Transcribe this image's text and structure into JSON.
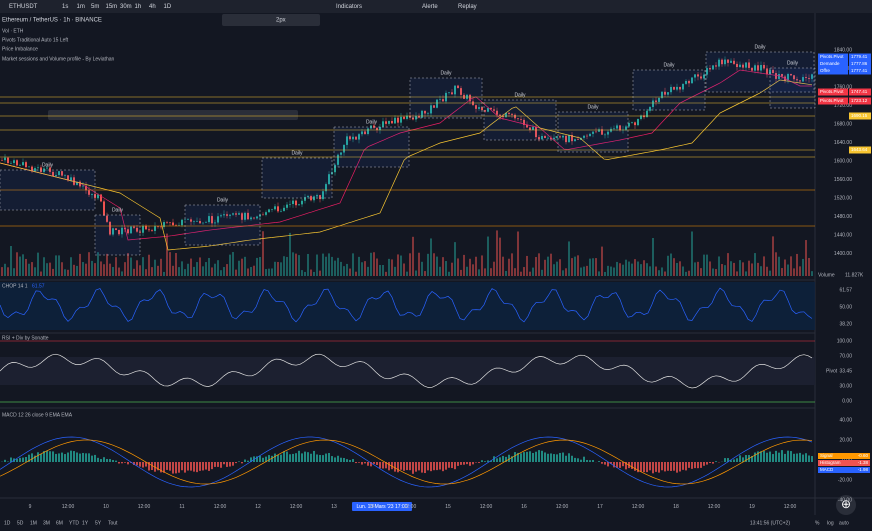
{
  "toolbar": {
    "symbol": "ETHUSDT",
    "timeframes": [
      "1s",
      "1m",
      "5m",
      "15m",
      "30m",
      "1h",
      "4h",
      "1D"
    ],
    "indicators": "Indicators",
    "alerts": "Alerte",
    "replay": "Replay",
    "size": "2px"
  },
  "header": {
    "title": "Ethereum / TetherUS · 1h · BINANCE",
    "volume": "Vol · ETH",
    "pivots": "Pivots Traditional Auto 15 Left",
    "imbalance": "Price Imbalance",
    "sessions": "Market sessions and Volume profile - By Leviathan"
  },
  "sessions": [
    "Daily",
    "Daily",
    "Daily",
    "Daily",
    "Daily",
    "Daily",
    "Daily",
    "Daily",
    "Daily",
    "Daily",
    "Daily"
  ],
  "price_axis": [
    "1840.00",
    "1800.00",
    "1760.00",
    "1720.00",
    "1680.00",
    "1640.00",
    "1600.00",
    "1560.00",
    "1520.00",
    "1480.00",
    "1440.00",
    "1400.00"
  ],
  "price_tags": [
    {
      "label": "Pivots.Pivot",
      "value": "1779.41"
    },
    {
      "label": "Demande",
      "value": "1777.86"
    },
    {
      "label": "Offre",
      "value": "1777.41"
    },
    {
      "label": "Pivots.Pivot",
      "value": "1747.41"
    },
    {
      "label": "Pivots.Pivot",
      "value": "1723.12"
    },
    {
      "label": "",
      "value": "1690.15"
    },
    {
      "label": "",
      "value": "1643.64"
    }
  ],
  "panes": {
    "volume_tag": "Volume",
    "volume_value": "11.827K",
    "chop": "CHOP 14 1",
    "chop_value": "61.57",
    "chop_axis": [
      "61.57",
      "50.00",
      "38.20"
    ],
    "rsi": "RSI + Div by Sonatte",
    "rsi_axis": [
      "100.00",
      "70.00",
      "33.45",
      "30.00",
      "0.00"
    ],
    "rsi_tag": "Pivot",
    "macd": "MACD 12 26 close 9 EMA EMA",
    "macd_axis": [
      "40.00",
      "20.00",
      "0.00",
      "-20.00",
      "-40.00"
    ],
    "macd_tags": [
      {
        "label": "Signal",
        "value": "-0.60"
      },
      {
        "label": "Histogram",
        "value": "-1.38"
      },
      {
        "label": "MACD",
        "value": "-1.98"
      }
    ]
  },
  "time_axis": [
    "9",
    "12:00",
    "10",
    "12:00",
    "11",
    "12:00",
    "12",
    "12:00",
    "13",
    "14",
    "12:00",
    "15",
    "12:00",
    "16",
    "12:00",
    "17",
    "12:00",
    "18",
    "12:00",
    "19",
    "12:00"
  ],
  "time_cursor": "Lun. 13 Mars '23 17:00",
  "ranges": [
    "1D",
    "5D",
    "1M",
    "3M",
    "6M",
    "YTD",
    "1Y",
    "5Y",
    "Tout"
  ],
  "clock": "13:41:56 (UTC+2)",
  "scale": [
    "%",
    "log",
    "auto"
  ]
}
